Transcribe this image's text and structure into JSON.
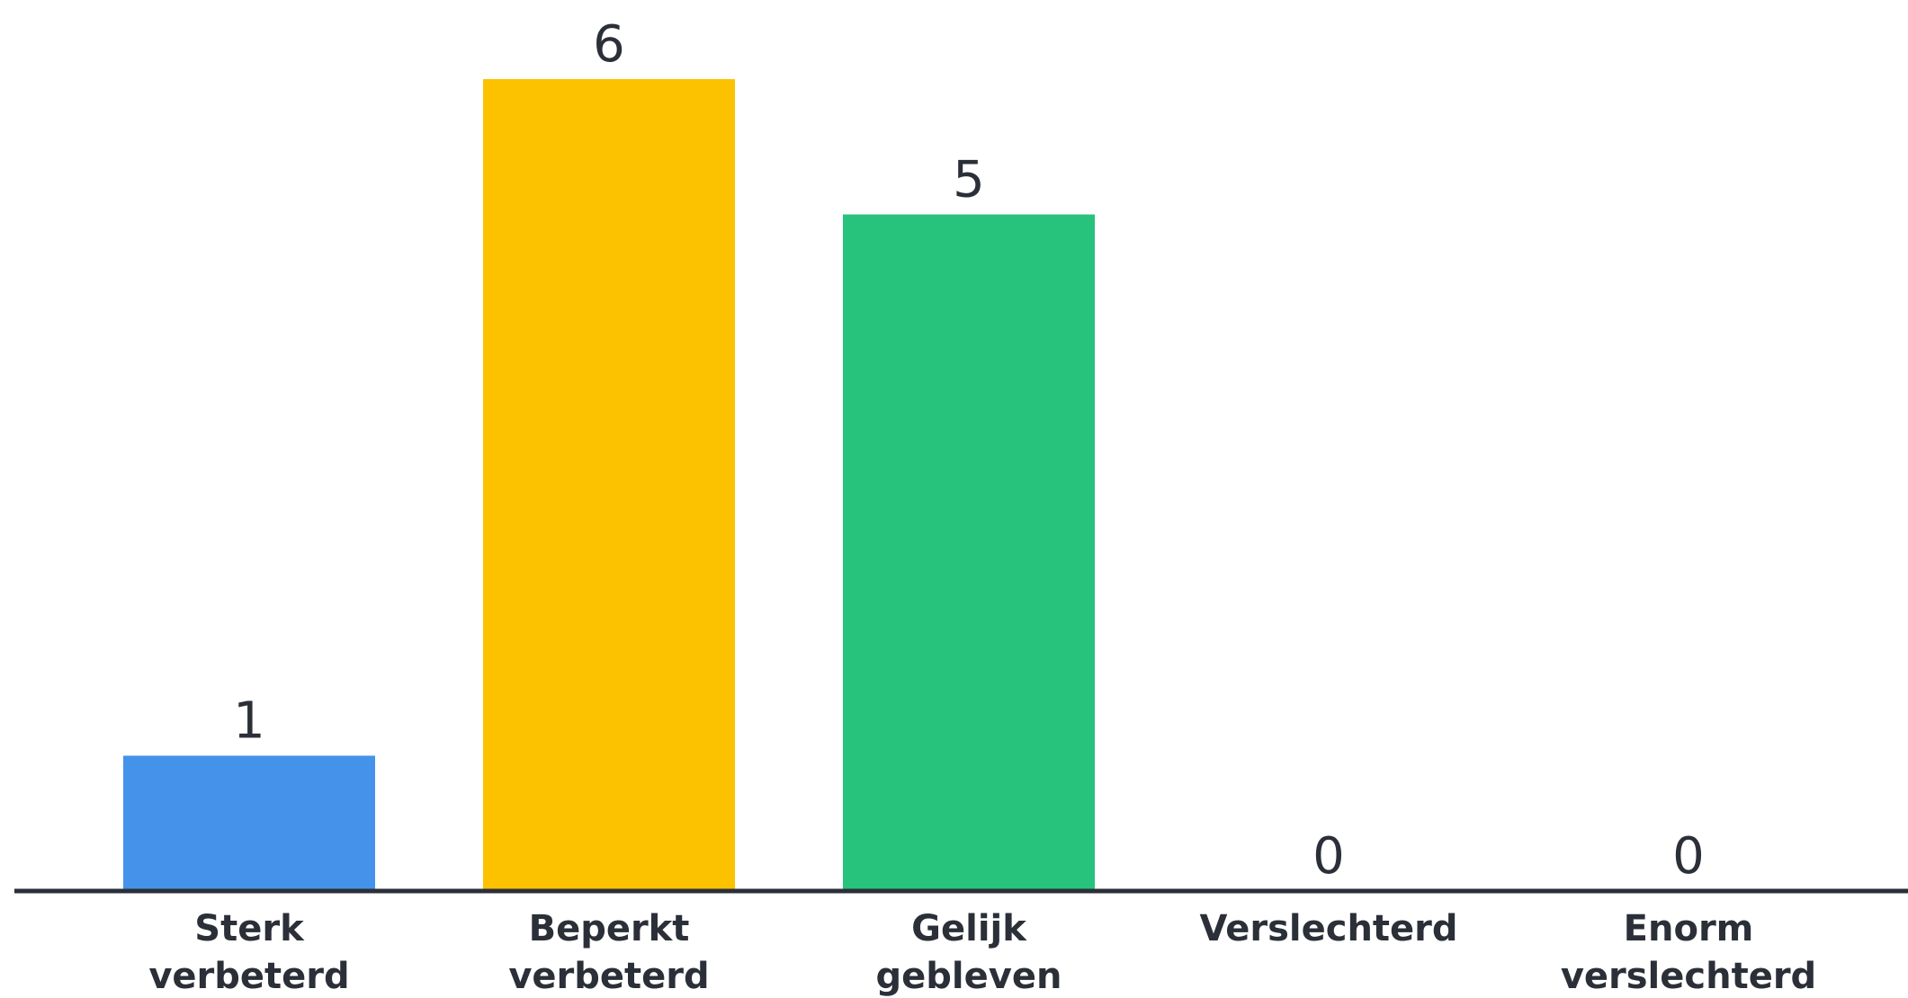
{
  "chart_data": {
    "type": "bar",
    "title": "",
    "xlabel": "",
    "ylabel": "",
    "categories": [
      [
        "Sterk",
        "verbeterd"
      ],
      [
        "Beperkt",
        "verbeterd"
      ],
      [
        "Gelijk",
        "gebleven"
      ],
      [
        "Verslechterd"
      ],
      [
        "Enorm",
        "verslechterd"
      ]
    ],
    "values": [
      1,
      6,
      5,
      0,
      0
    ],
    "colors": [
      "#4592EB",
      "#FCC200",
      "#27C27C",
      "#ffffff",
      "#ffffff"
    ],
    "axis_color": "#2b2f38",
    "ylim": [
      0,
      6
    ],
    "grid": false,
    "legend": "none"
  }
}
